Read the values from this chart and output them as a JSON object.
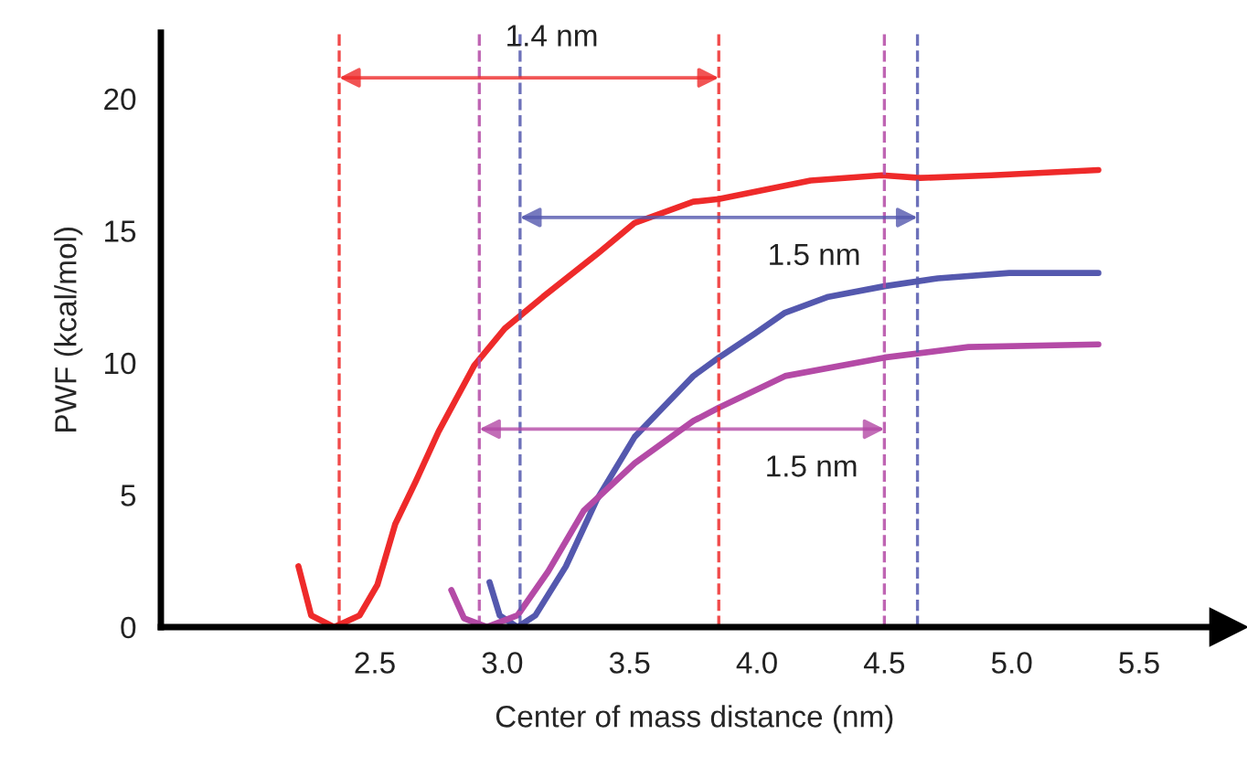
{
  "chart_data": {
    "type": "line",
    "xlabel": "Center of mass distance (nm)",
    "ylabel": "PWF (kcal/mol)",
    "xlim": [
      1.66,
      5.85
    ],
    "ylim": [
      0,
      22.5
    ],
    "xticks": [
      {
        "value": 2.5,
        "label": "2.5"
      },
      {
        "value": 3.0,
        "label": "3.0"
      },
      {
        "value": 3.5,
        "label": "3.5"
      },
      {
        "value": 4.0,
        "label": "4.0"
      },
      {
        "value": 4.5,
        "label": "4.5"
      },
      {
        "value": 5.0,
        "label": "5.0"
      },
      {
        "value": 5.5,
        "label": "5.5"
      }
    ],
    "yticks": [
      0,
      5,
      10,
      15,
      20
    ],
    "grid": false,
    "marker": "none",
    "line_style": "solid",
    "series": [
      {
        "color": "#ee2a2a",
        "x": [
          2.2,
          2.25,
          2.34,
          2.44,
          2.51,
          2.58,
          2.66,
          2.75,
          2.89,
          3.01,
          3.16,
          3.37,
          3.52,
          3.75,
          3.85,
          4.21,
          4.49,
          4.64,
          4.92,
          5.34
        ],
        "values": [
          2.3,
          0.44,
          0,
          0.44,
          1.6,
          3.9,
          5.5,
          7.4,
          9.9,
          11.3,
          12.5,
          14.1,
          15.3,
          16.1,
          16.2,
          16.9,
          17.1,
          17.0,
          17.1,
          17.3
        ]
      },
      {
        "color": "#5458ae",
        "x": [
          2.95,
          2.99,
          3.06,
          3.13,
          3.25,
          3.37,
          3.52,
          3.75,
          3.85,
          3.99,
          4.11,
          4.28,
          4.5,
          4.71,
          4.99,
          5.34
        ],
        "values": [
          1.7,
          0.44,
          0,
          0.44,
          2.3,
          4.8,
          7.2,
          9.5,
          10.2,
          11.1,
          11.9,
          12.5,
          12.9,
          13.2,
          13.4,
          13.4
        ]
      },
      {
        "color": "#b44aa6",
        "x": [
          2.8,
          2.85,
          2.94,
          3.06,
          3.18,
          3.32,
          3.52,
          3.75,
          3.85,
          4.11,
          4.5,
          4.83,
          5.34
        ],
        "values": [
          1.4,
          0.33,
          0,
          0.44,
          2.1,
          4.4,
          6.2,
          7.8,
          8.3,
          9.5,
          10.2,
          10.6,
          10.7
        ]
      }
    ],
    "ref_lines": [
      {
        "axis": "x",
        "value": 2.36,
        "color": "#ee2a2a",
        "line_style": "dashed"
      },
      {
        "axis": "x",
        "value": 3.85,
        "color": "#ee2a2a",
        "line_style": "dashed"
      },
      {
        "axis": "x",
        "value": 3.07,
        "color": "#5458ae",
        "line_style": "dashed"
      },
      {
        "axis": "x",
        "value": 4.63,
        "color": "#5458ae",
        "line_style": "dashed"
      },
      {
        "axis": "x",
        "value": 2.91,
        "color": "#b44aa6",
        "line_style": "dashed"
      },
      {
        "axis": "x",
        "value": 4.5,
        "color": "#b44aa6",
        "line_style": "dashed"
      }
    ],
    "annotations": [
      "1.4 nm",
      "1.5 nm",
      "1.5 nm"
    ]
  }
}
